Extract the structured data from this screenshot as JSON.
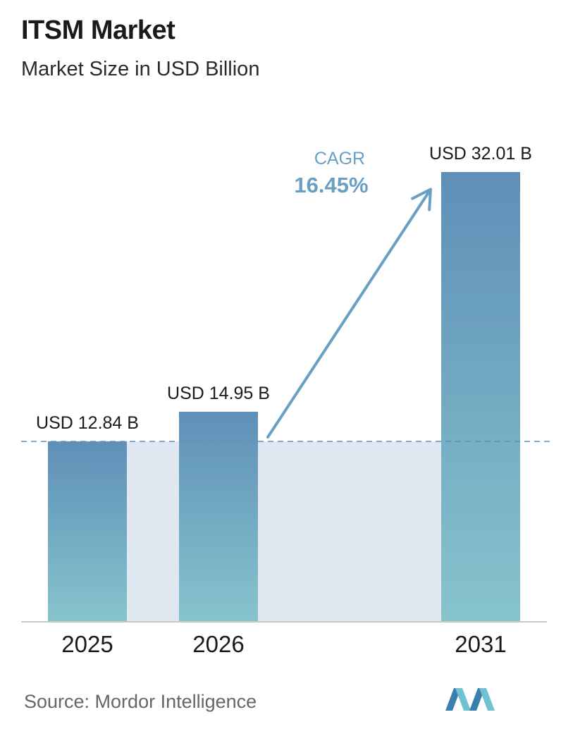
{
  "header": {
    "title": "ITSM Market",
    "subtitle": "Market Size in USD Billion"
  },
  "footer": {
    "source": "Source:  Mordor Intelligence",
    "logo_icon": "mordor-intelligence-logo-icon"
  },
  "cagr": {
    "label": "CAGR",
    "value": "16.45%",
    "color": "#6a9fc4"
  },
  "colors": {
    "bar_top": "#5f8fb8",
    "bar_bottom": "#86c4cc",
    "band": "#dfe8f1",
    "baseline_dash": "#5f8fb8",
    "arrow": "#6a9fc4"
  },
  "chart_data": {
    "type": "bar",
    "categories": [
      "2025",
      "2026",
      "2031"
    ],
    "values": [
      12.84,
      14.95,
      32.01
    ],
    "value_labels": [
      "USD 12.84 B",
      "USD 14.95 B",
      "USD 32.01 B"
    ],
    "title": "ITSM Market",
    "subtitle": "Market Size in USD Billion",
    "xlabel": "",
    "ylabel": "",
    "ylim": [
      0,
      32.01
    ],
    "grid": false,
    "reference_line_value": 12.84
  }
}
